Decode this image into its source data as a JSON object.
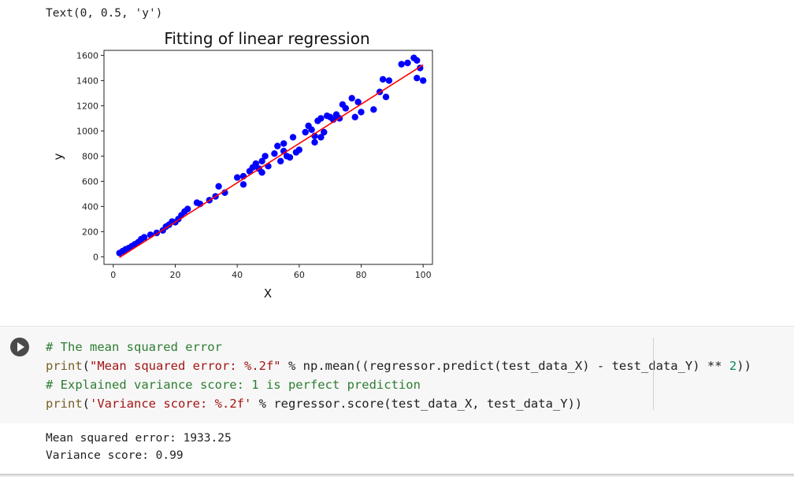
{
  "text_output": "Text(0, 0.5, 'y')",
  "chart_data": {
    "type": "scatter",
    "title": "Fitting of linear regression",
    "xlabel": "X",
    "ylabel": "y",
    "xlim": [
      -3,
      103
    ],
    "ylim": [
      -60,
      1640
    ],
    "x_ticks": [
      0,
      20,
      40,
      60,
      80,
      100
    ],
    "y_ticks": [
      0,
      200,
      400,
      600,
      800,
      1000,
      1200,
      1400,
      1600
    ],
    "grid": false,
    "colors": {
      "points": "#0000ff",
      "line": "#ff0000"
    },
    "points": [
      [
        2,
        30
      ],
      [
        3,
        45
      ],
      [
        4,
        60
      ],
      [
        5,
        70
      ],
      [
        6,
        85
      ],
      [
        7,
        100
      ],
      [
        8,
        115
      ],
      [
        9,
        140
      ],
      [
        10,
        155
      ],
      [
        12,
        175
      ],
      [
        14,
        190
      ],
      [
        16,
        210
      ],
      [
        17,
        240
      ],
      [
        18,
        255
      ],
      [
        19,
        280
      ],
      [
        20,
        275
      ],
      [
        21,
        300
      ],
      [
        22,
        330
      ],
      [
        23,
        360
      ],
      [
        24,
        380
      ],
      [
        27,
        430
      ],
      [
        28,
        420
      ],
      [
        31,
        450
      ],
      [
        33,
        480
      ],
      [
        34,
        560
      ],
      [
        36,
        510
      ],
      [
        40,
        630
      ],
      [
        42,
        640
      ],
      [
        42,
        575
      ],
      [
        44,
        680
      ],
      [
        45,
        710
      ],
      [
        46,
        740
      ],
      [
        47,
        700
      ],
      [
        48,
        760
      ],
      [
        48,
        670
      ],
      [
        49,
        800
      ],
      [
        50,
        720
      ],
      [
        52,
        820
      ],
      [
        53,
        880
      ],
      [
        54,
        760
      ],
      [
        55,
        900
      ],
      [
        55,
        840
      ],
      [
        56,
        800
      ],
      [
        57,
        790
      ],
      [
        58,
        950
      ],
      [
        59,
        830
      ],
      [
        60,
        850
      ],
      [
        62,
        990
      ],
      [
        63,
        1040
      ],
      [
        64,
        1010
      ],
      [
        65,
        960
      ],
      [
        65,
        910
      ],
      [
        66,
        1080
      ],
      [
        67,
        1100
      ],
      [
        67,
        950
      ],
      [
        68,
        990
      ],
      [
        69,
        1120
      ],
      [
        70,
        1110
      ],
      [
        71,
        1090
      ],
      [
        72,
        1130
      ],
      [
        73,
        1100
      ],
      [
        74,
        1210
      ],
      [
        75,
        1180
      ],
      [
        77,
        1260
      ],
      [
        78,
        1110
      ],
      [
        79,
        1230
      ],
      [
        80,
        1150
      ],
      [
        84,
        1170
      ],
      [
        86,
        1310
      ],
      [
        87,
        1410
      ],
      [
        88,
        1270
      ],
      [
        89,
        1400
      ],
      [
        93,
        1530
      ],
      [
        95,
        1540
      ],
      [
        97,
        1580
      ],
      [
        98,
        1560
      ],
      [
        98,
        1420
      ],
      [
        99,
        1500
      ],
      [
        100,
        1400
      ]
    ],
    "fit_line": {
      "x": [
        2,
        100
      ],
      "y": [
        -5,
        1525
      ]
    }
  },
  "code_cell": {
    "run_label": "Run cell",
    "lines": {
      "l1": "# The mean squared error",
      "l2_fn": "print",
      "l2_p1": "(",
      "l2_str": "\"Mean squared error: %.2f\"",
      "l2_rest": " % np.mean((regressor.predict(test_data_X) - test_data_Y) ** ",
      "l2_num": "2",
      "l2_end": "))",
      "l3": "# Explained variance score: 1 is perfect prediction",
      "l4_fn": "print",
      "l4_p1": "(",
      "l4_str": "'Variance score: %.2f'",
      "l4_rest": " % regressor.score(test_data_X, test_data_Y))"
    }
  },
  "output": {
    "line1": "Mean squared error: 1933.25",
    "line2": "Variance score: 0.99"
  }
}
